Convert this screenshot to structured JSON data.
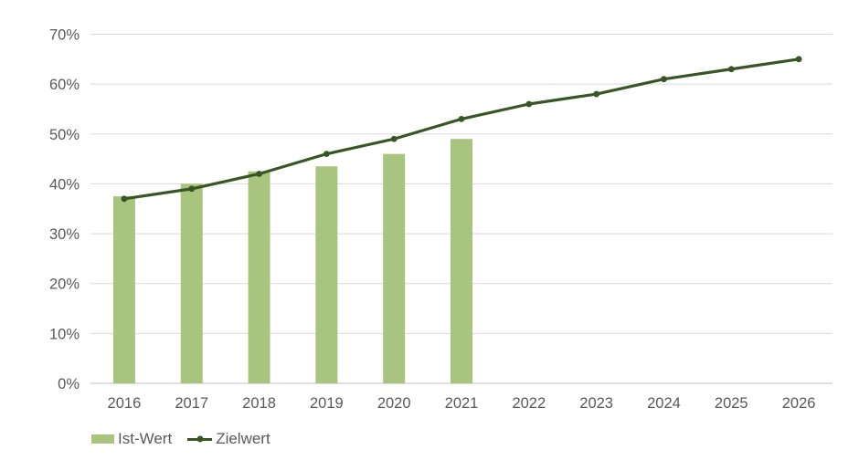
{
  "chart_data": {
    "type": "combo-bar-line",
    "categories": [
      "2016",
      "2017",
      "2018",
      "2019",
      "2020",
      "2021",
      "2022",
      "2023",
      "2024",
      "2025",
      "2026"
    ],
    "series": [
      {
        "name": "Ist-Wert",
        "mark": "bar",
        "color": "#a9c47f",
        "values": [
          37.5,
          40,
          42.5,
          43.5,
          46,
          49,
          null,
          null,
          null,
          null,
          null
        ]
      },
      {
        "name": "Zielwert",
        "mark": "line",
        "marker": "dot",
        "color": "#375623",
        "values": [
          37,
          39,
          42,
          46,
          49,
          53,
          56,
          58,
          61,
          63,
          65
        ]
      }
    ],
    "value_format": "percent",
    "ylim": [
      0,
      70
    ],
    "ytick_step": 10,
    "ytick_labels": [
      "0%",
      "10%",
      "20%",
      "30%",
      "40%",
      "50%",
      "60%",
      "70%"
    ],
    "grid": true,
    "legend_position": "bottom-left"
  },
  "colors": {
    "background": "#ffffff",
    "gridline": "#d9d9d9",
    "axis_line": "#bfbfbf",
    "tick_label": "#595959",
    "legend_text": "#595959",
    "bar": "#a9c47f",
    "line": "#375623"
  }
}
